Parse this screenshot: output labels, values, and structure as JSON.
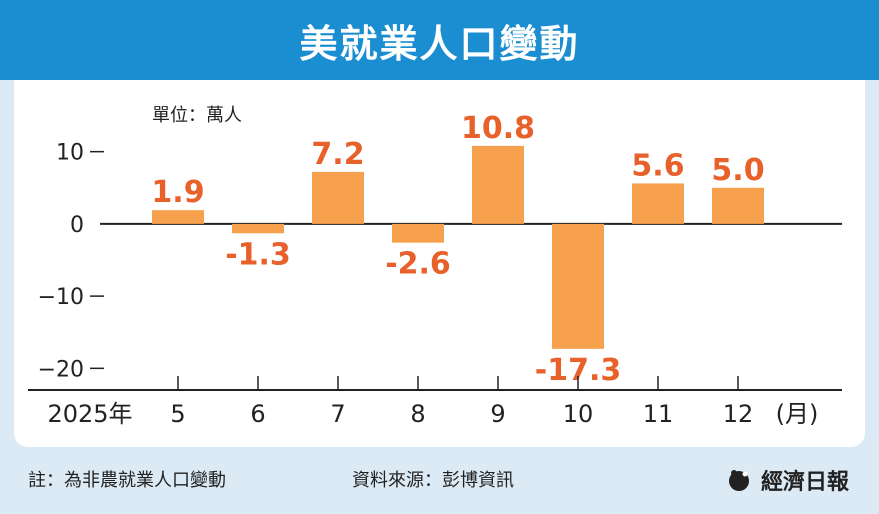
{
  "header": {
    "title": "美就業人口變動"
  },
  "footer": {
    "note": "註：為非農就業人口變動",
    "source": "資料來源：彭博資訊",
    "brand": "經濟日報"
  },
  "colors": {
    "header_bg": "#1a8ed0",
    "bar": "#f7a14e",
    "value_label": "#e8602a",
    "axis": "#222222",
    "background": "#dbeaf5"
  },
  "chart_data": {
    "type": "bar",
    "unit_label": "單位：萬人",
    "year_label": "2025年",
    "month_unit": "(月)",
    "categories": [
      "5",
      "6",
      "7",
      "8",
      "9",
      "10",
      "11",
      "12"
    ],
    "values": [
      1.9,
      -1.3,
      7.2,
      -2.6,
      10.8,
      -17.3,
      5.6,
      5.0
    ],
    "value_labels": [
      "1.9",
      "-1.3",
      "7.2",
      "-2.6",
      "10.8",
      "-17.3",
      "5.6",
      "5.0"
    ],
    "yticks": [
      10,
      0,
      -10,
      -20
    ],
    "ytick_labels": [
      "10",
      "0",
      "−10",
      "−20"
    ],
    "ylim": [
      -23,
      13
    ],
    "grid": false
  }
}
